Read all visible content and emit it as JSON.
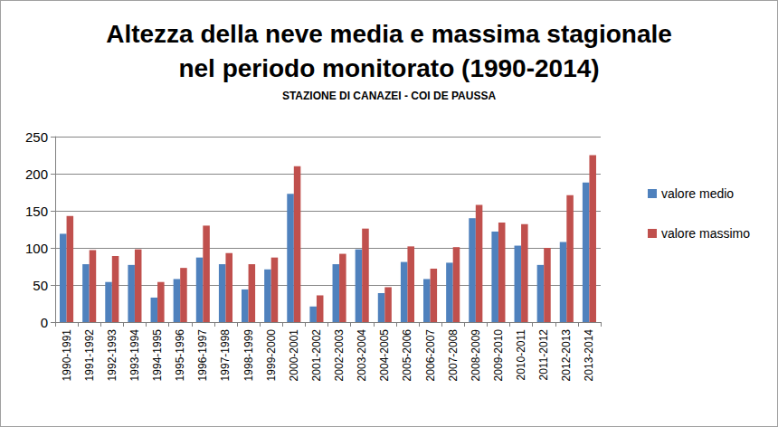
{
  "chart_data": {
    "type": "bar",
    "title": "Altezza della neve media e massima stagionale\nnel periodo monitorato (1990-2014)",
    "subtitle": "STAZIONE DI CANAZEI - COI DE PAUSSA",
    "categories": [
      "1990-1991",
      "1991-1992",
      "1992-1993",
      "1993-1994",
      "1994-1995",
      "1995-1996",
      "1996-1997",
      "1997-1998",
      "1998-1999",
      "1999-2000",
      "2000-2001",
      "2001-2002",
      "2002-2003",
      "2003-2004",
      "2004-2005",
      "2005-2006",
      "2006-2007",
      "2007-2008",
      "2008-2009",
      "2009-2010",
      "2010-2011",
      "2011-2012",
      "2012-2013",
      "2013-2014"
    ],
    "series": [
      {
        "name": "valore medio",
        "color": "#4f81bd",
        "values": [
          119,
          78,
          54,
          77,
          33,
          58,
          87,
          78,
          44,
          71,
          173,
          21,
          78,
          98,
          39,
          81,
          58,
          80,
          140,
          122,
          103,
          77,
          108,
          188
        ]
      },
      {
        "name": "valore massimo",
        "color": "#c0504d",
        "values": [
          143,
          97,
          89,
          98,
          54,
          73,
          130,
          93,
          78,
          87,
          210,
          36,
          92,
          126,
          47,
          102,
          72,
          101,
          158,
          134,
          132,
          100,
          171,
          225
        ]
      }
    ],
    "ylim": [
      0,
      250
    ],
    "yticks": [
      0,
      50,
      100,
      150,
      200,
      250
    ],
    "grid": true,
    "legend": "right"
  }
}
